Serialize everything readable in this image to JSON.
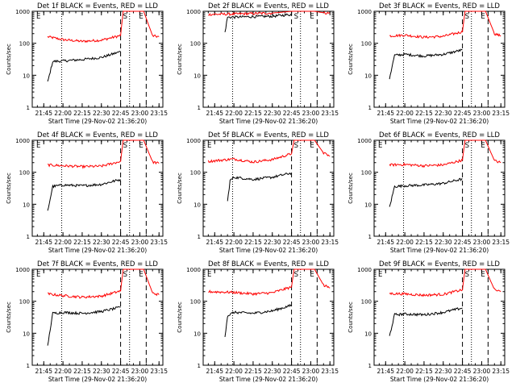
{
  "chart_data": [
    {
      "type": "line",
      "title": "Det 1f BLACK = Events, RED = LLD",
      "xlabel": "Start Time (29-Nov-02 21:36:20)",
      "ylabel": "Counts/sec",
      "x_ticks": [
        "21:45",
        "22:00",
        "22:15",
        "22:30",
        "22:45",
        "23:00",
        "23:15"
      ],
      "y_ticks": [
        "1",
        "10",
        "100",
        "1000"
      ],
      "ylim": [
        1,
        1000
      ],
      "yscale": "log",
      "markers": [
        {
          "label": "E",
          "time": "21:45"
        },
        {
          "label": "S",
          "time": "22:45"
        },
        {
          "label": "E",
          "time": "23:00"
        }
      ],
      "series": [
        {
          "color": "#ff0000",
          "x": [
            "21:48",
            "22:00",
            "22:15",
            "22:30",
            "22:45",
            "22:47",
            "22:50",
            "23:03",
            "23:10",
            "23:15"
          ],
          "values": [
            160,
            130,
            115,
            125,
            175,
            1000,
            1000,
            1000,
            170,
            160
          ]
        },
        {
          "color": "#000000",
          "x": [
            "21:48",
            "21:52",
            "22:00",
            "22:15",
            "22:30",
            "22:45"
          ],
          "values": [
            6,
            27,
            28,
            31,
            36,
            55
          ]
        }
      ]
    },
    {
      "type": "line",
      "title": "Det 2f BLACK = Events, RED = LLD",
      "xlabel": "Start Time (29-Nov-02 21:36:20)",
      "ylabel": "Counts/sec",
      "x_ticks": [
        "21:45",
        "22:00",
        "22:15",
        "22:30",
        "22:45",
        "23:00",
        "23:15"
      ],
      "y_ticks": [
        "1",
        "10",
        "100",
        "1000"
      ],
      "ylim": [
        1,
        1000
      ],
      "yscale": "log",
      "markers": [
        {
          "label": "S",
          "time": "22:45"
        },
        {
          "label": "E",
          "time": "23:00"
        }
      ],
      "series": [
        {
          "color": "#ff0000",
          "x": [
            "21:40",
            "22:00",
            "22:15",
            "22:30",
            "22:45",
            "22:47",
            "22:50",
            "23:03",
            "23:10",
            "23:15"
          ],
          "values": [
            800,
            820,
            850,
            880,
            1000,
            1000,
            1000,
            1000,
            900,
            870
          ]
        },
        {
          "color": "#000000",
          "x": [
            "21:53",
            "21:55",
            "22:15",
            "22:30",
            "22:45"
          ],
          "values": [
            220,
            650,
            680,
            700,
            800
          ]
        }
      ]
    },
    {
      "type": "line",
      "title": "Det 3f BLACK = Events, RED = LLD",
      "xlabel": "Start Time (29-Nov-02 21:36:20)",
      "ylabel": "Counts/sec",
      "x_ticks": [
        "21:45",
        "22:00",
        "22:15",
        "22:30",
        "22:45",
        "23:00",
        "23:15"
      ],
      "y_ticks": [
        "1",
        "10",
        "100",
        "1000"
      ],
      "ylim": [
        1,
        1000
      ],
      "yscale": "log",
      "markers": [
        {
          "label": "S",
          "time": "22:45"
        },
        {
          "label": "E",
          "time": "23:00"
        }
      ],
      "series": [
        {
          "color": "#ff0000",
          "x": [
            "21:48",
            "22:00",
            "22:15",
            "22:30",
            "22:45",
            "22:47",
            "22:50",
            "23:03",
            "23:10",
            "23:15"
          ],
          "values": [
            170,
            180,
            155,
            165,
            230,
            1000,
            1000,
            1000,
            200,
            170
          ]
        },
        {
          "color": "#000000",
          "x": [
            "21:48",
            "21:52",
            "22:00",
            "22:15",
            "22:30",
            "22:45"
          ],
          "values": [
            8,
            42,
            45,
            40,
            45,
            62
          ]
        }
      ]
    },
    {
      "type": "line",
      "title": "Det 4f BLACK = Events, RED = LLD",
      "xlabel": "Start Time (29-Nov-02 21:36:20)",
      "ylabel": "Counts/sec",
      "x_ticks": [
        "21:45",
        "22:00",
        "22:15",
        "22:30",
        "22:45",
        "23:00",
        "23:15"
      ],
      "y_ticks": [
        "1",
        "10",
        "100",
        "1000"
      ],
      "ylim": [
        1,
        1000
      ],
      "yscale": "log",
      "markers": [
        {
          "label": "E",
          "time": "21:45"
        },
        {
          "label": "S",
          "time": "22:45"
        },
        {
          "label": "E",
          "time": "23:00"
        }
      ],
      "series": [
        {
          "color": "#ff0000",
          "x": [
            "21:48",
            "22:00",
            "22:15",
            "22:30",
            "22:45",
            "22:47",
            "22:50",
            "23:03",
            "23:10",
            "23:15"
          ],
          "values": [
            170,
            160,
            150,
            155,
            220,
            1000,
            1000,
            1000,
            210,
            190
          ]
        },
        {
          "color": "#000000",
          "x": [
            "21:48",
            "21:52",
            "22:00",
            "22:15",
            "22:30",
            "22:45"
          ],
          "values": [
            6,
            36,
            40,
            38,
            42,
            60
          ]
        }
      ]
    },
    {
      "type": "line",
      "title": "Det 5f BLACK = Events, RED = LLD",
      "xlabel": "Start Time (29-Nov-02 21:36:20)",
      "ylabel": "Counts/sec",
      "x_ticks": [
        "21:45",
        "22:00",
        "22:15",
        "22:30",
        "22:45",
        "23:00",
        "23:15"
      ],
      "y_ticks": [
        "1",
        "10",
        "100",
        "1000"
      ],
      "ylim": [
        1,
        1000
      ],
      "yscale": "log",
      "markers": [
        {
          "label": "E",
          "time": "21:45"
        },
        {
          "label": "S",
          "time": "22:45"
        },
        {
          "label": "E",
          "time": "23:00"
        }
      ],
      "series": [
        {
          "color": "#ff0000",
          "x": [
            "21:40",
            "22:00",
            "22:15",
            "22:30",
            "22:45",
            "22:47",
            "22:50",
            "23:03",
            "23:10",
            "23:15"
          ],
          "values": [
            220,
            260,
            210,
            250,
            380,
            1000,
            1000,
            1000,
            400,
            320
          ]
        },
        {
          "color": "#000000",
          "x": [
            "21:55",
            "21:57",
            "22:00",
            "22:15",
            "22:30",
            "22:45"
          ],
          "values": [
            12,
            55,
            70,
            60,
            70,
            95
          ]
        }
      ]
    },
    {
      "type": "line",
      "title": "Det 6f BLACK = Events, RED = LLD",
      "xlabel": "Start Time (29-Nov-02 21:36:20)",
      "ylabel": "Counts/sec",
      "x_ticks": [
        "21:45",
        "22:00",
        "22:15",
        "22:30",
        "22:45",
        "23:00",
        "23:15"
      ],
      "y_ticks": [
        "1",
        "10",
        "100",
        "1000"
      ],
      "ylim": [
        1,
        1000
      ],
      "yscale": "log",
      "markers": [
        {
          "label": "E",
          "time": "21:45"
        },
        {
          "label": "S",
          "time": "22:45"
        },
        {
          "label": "E",
          "time": "23:00"
        }
      ],
      "series": [
        {
          "color": "#ff0000",
          "x": [
            "21:48",
            "22:00",
            "22:15",
            "22:30",
            "22:45",
            "22:47",
            "22:50",
            "23:03",
            "23:10",
            "23:15"
          ],
          "values": [
            170,
            175,
            160,
            170,
            240,
            1000,
            1000,
            1000,
            230,
            200
          ]
        },
        {
          "color": "#000000",
          "x": [
            "21:48",
            "21:52",
            "22:00",
            "22:15",
            "22:30",
            "22:45"
          ],
          "values": [
            8,
            36,
            38,
            40,
            45,
            62
          ]
        }
      ]
    },
    {
      "type": "line",
      "title": "Det 7f BLACK = Events, RED = LLD",
      "xlabel": "Start Time (29-Nov-02 21:36:20)",
      "ylabel": "Counts/sec",
      "x_ticks": [
        "21:45",
        "22:00",
        "22:15",
        "22:30",
        "22:45",
        "23:00",
        "23:15"
      ],
      "y_ticks": [
        "1",
        "10",
        "100",
        "1000"
      ],
      "ylim": [
        1,
        1000
      ],
      "yscale": "log",
      "markers": [
        {
          "label": "E",
          "time": "21:45"
        },
        {
          "label": "S",
          "time": "22:45"
        },
        {
          "label": "E",
          "time": "23:00"
        }
      ],
      "series": [
        {
          "color": "#ff0000",
          "x": [
            "21:48",
            "22:00",
            "22:15",
            "22:30",
            "22:45",
            "22:47",
            "22:50",
            "23:03",
            "23:10",
            "23:15"
          ],
          "values": [
            170,
            150,
            135,
            145,
            210,
            1000,
            1000,
            1000,
            180,
            160
          ]
        },
        {
          "color": "#000000",
          "x": [
            "21:48",
            "21:52",
            "22:00",
            "22:15",
            "22:30",
            "22:45"
          ],
          "values": [
            4,
            42,
            45,
            42,
            48,
            65
          ]
        }
      ]
    },
    {
      "type": "line",
      "title": "Det 8f BLACK = Events, RED = LLD",
      "xlabel": "Start Time (29-Nov-02 21:36:20)",
      "ylabel": "Counts/sec",
      "x_ticks": [
        "21:45",
        "22:00",
        "22:15",
        "22:30",
        "22:45",
        "23:00",
        "23:15"
      ],
      "y_ticks": [
        "1",
        "10",
        "100",
        "1000"
      ],
      "ylim": [
        1,
        1000
      ],
      "yscale": "log",
      "markers": [
        {
          "label": "E",
          "time": "21:45"
        },
        {
          "label": "S",
          "time": "22:45"
        },
        {
          "label": "E",
          "time": "23:00"
        }
      ],
      "series": [
        {
          "color": "#ff0000",
          "x": [
            "21:40",
            "22:00",
            "22:15",
            "22:30",
            "22:45",
            "22:47",
            "22:50",
            "23:03",
            "23:10",
            "23:15"
          ],
          "values": [
            200,
            190,
            170,
            185,
            280,
            1000,
            1000,
            1000,
            320,
            260
          ]
        },
        {
          "color": "#000000",
          "x": [
            "21:53",
            "21:55",
            "22:00",
            "22:15",
            "22:30",
            "22:45"
          ],
          "values": [
            8,
            35,
            45,
            42,
            50,
            75
          ]
        }
      ]
    },
    {
      "type": "line",
      "title": "Det 9f BLACK = Events, RED = LLD",
      "xlabel": "Start Time (29-Nov-02 21:36:20)",
      "ylabel": "Counts/sec",
      "x_ticks": [
        "21:45",
        "22:00",
        "22:15",
        "22:30",
        "22:45",
        "23:00",
        "23:15"
      ],
      "y_ticks": [
        "1",
        "10",
        "100",
        "1000"
      ],
      "ylim": [
        1,
        1000
      ],
      "yscale": "log",
      "markers": [
        {
          "label": "E",
          "time": "21:45"
        },
        {
          "label": "S",
          "time": "22:45"
        },
        {
          "label": "E",
          "time": "23:00"
        }
      ],
      "series": [
        {
          "color": "#ff0000",
          "x": [
            "21:48",
            "22:00",
            "22:15",
            "22:30",
            "22:45",
            "22:47",
            "22:50",
            "23:03",
            "23:10",
            "23:15"
          ],
          "values": [
            175,
            170,
            155,
            165,
            230,
            1000,
            1000,
            1000,
            230,
            200
          ]
        },
        {
          "color": "#000000",
          "x": [
            "21:48",
            "21:52",
            "22:00",
            "22:15",
            "22:30",
            "22:45"
          ],
          "values": [
            8,
            38,
            40,
            38,
            45,
            62
          ]
        }
      ]
    }
  ]
}
